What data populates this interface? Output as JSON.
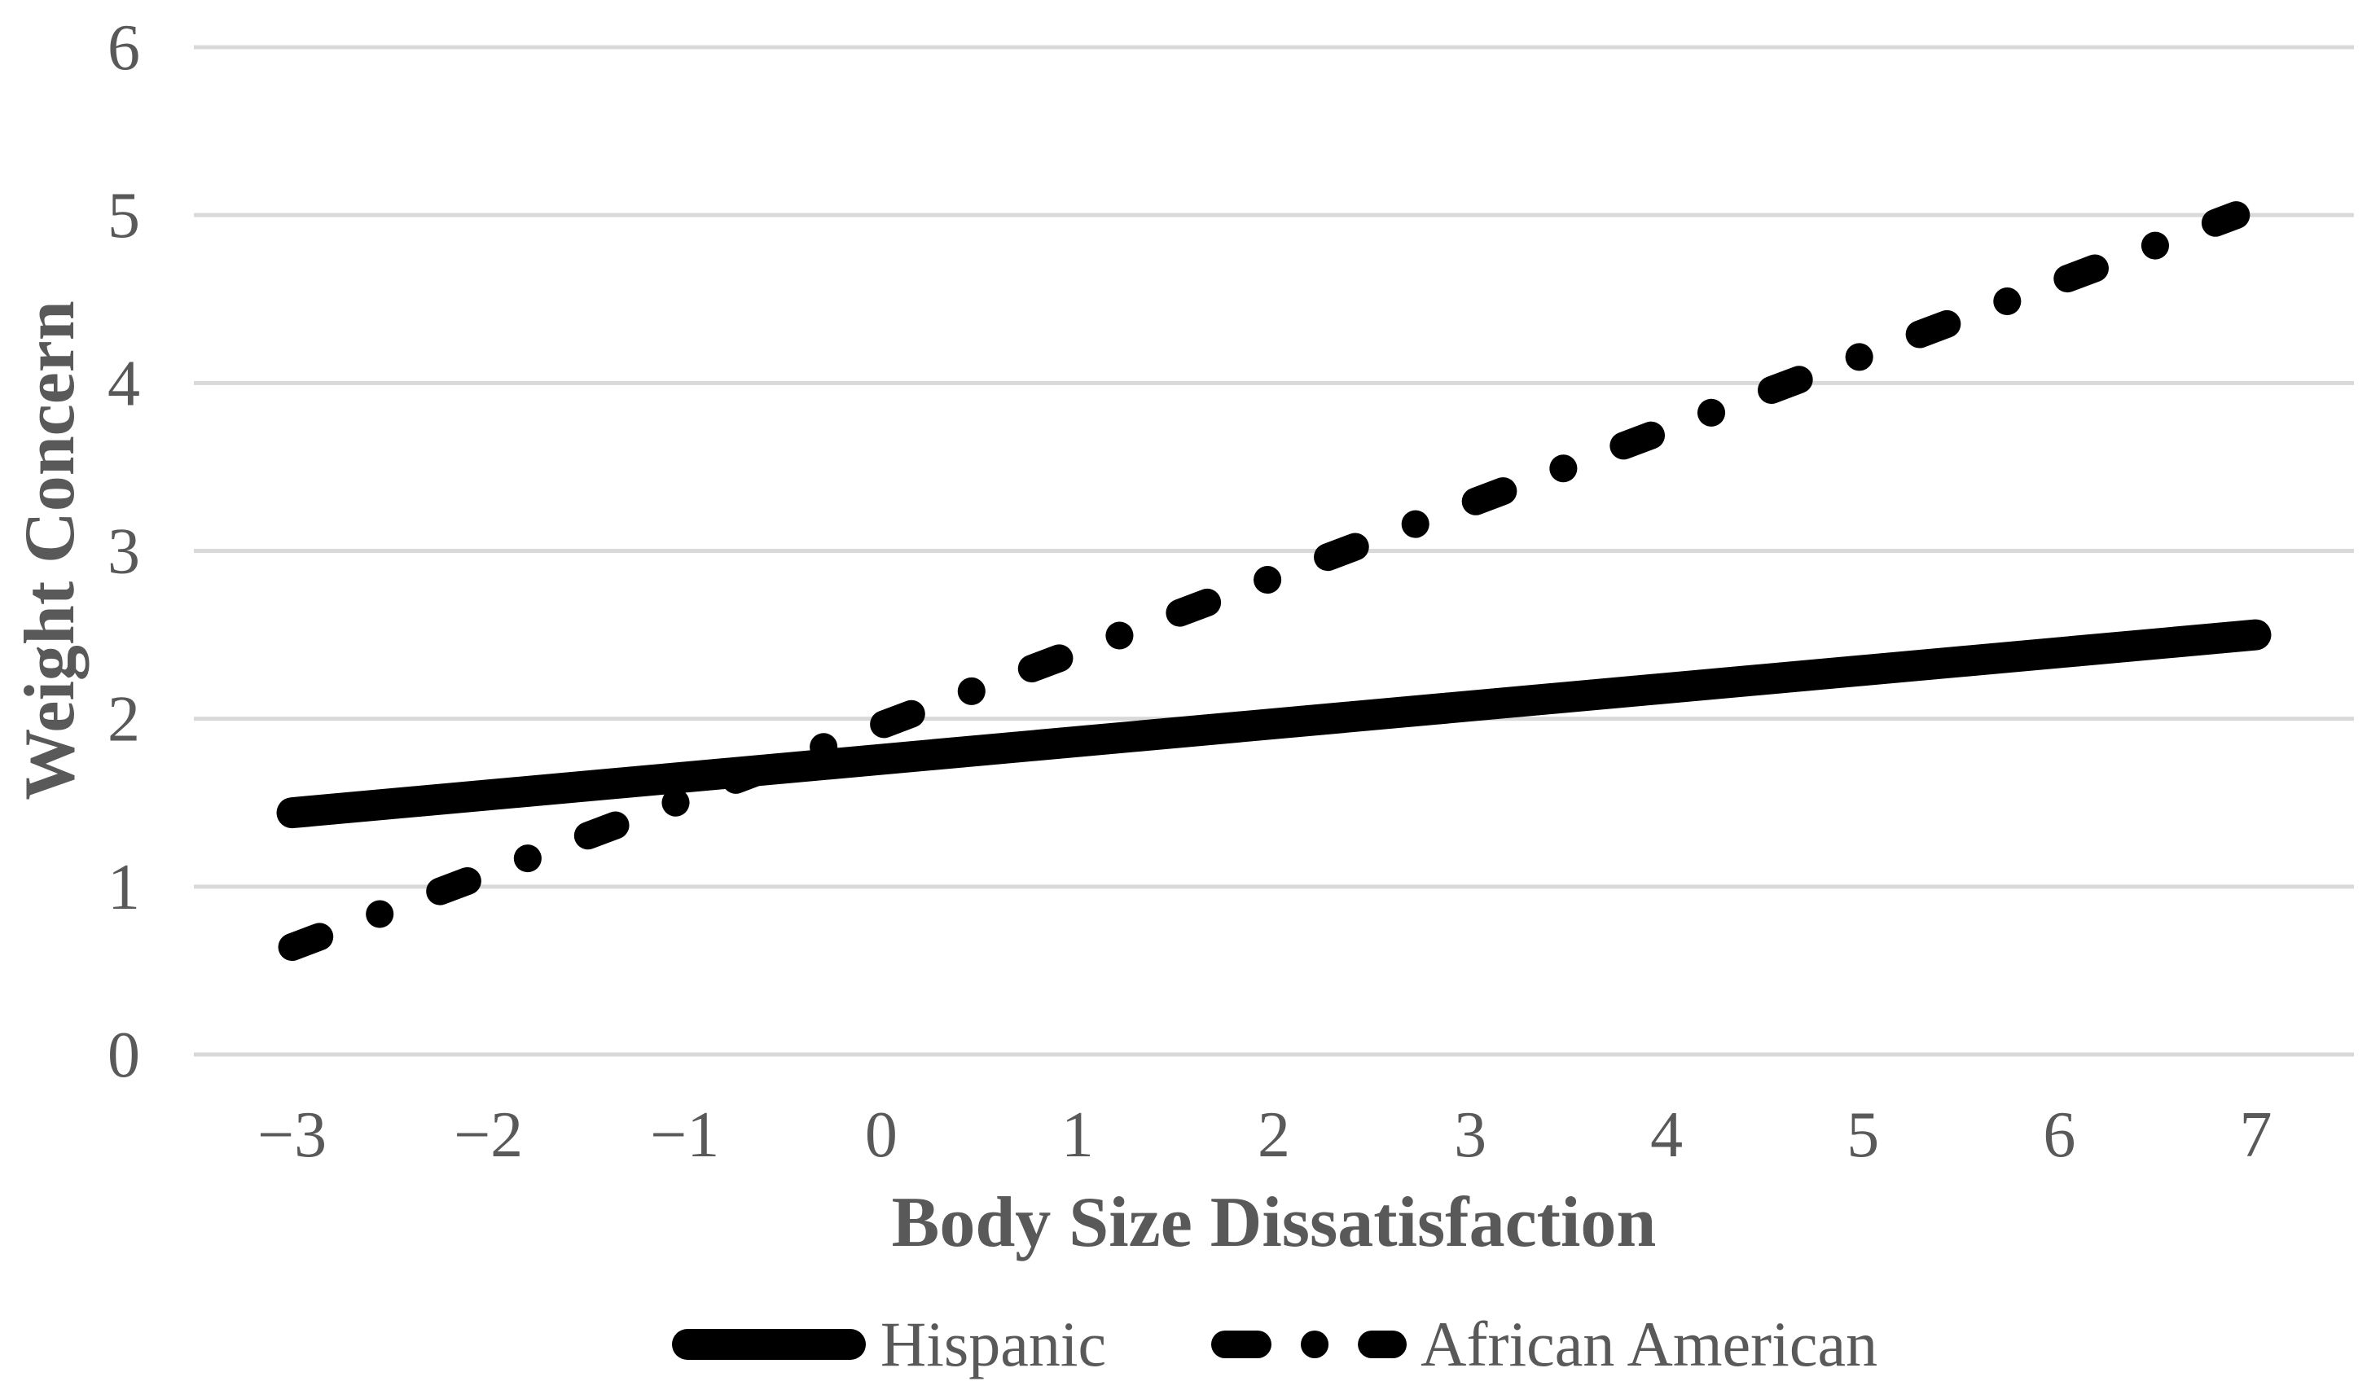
{
  "styles": {
    "background": "#FFFFFF",
    "text_color": "#595959",
    "gridline_color": "#D9D9D9",
    "series_color": "#000000"
  },
  "chart_data": {
    "type": "line",
    "title": "",
    "xlabel": "Body Size Dissatisfaction",
    "ylabel": "Weight Concern",
    "xlim": [
      -3.5,
      7.5
    ],
    "ylim": [
      0,
      6
    ],
    "grid": "horizontal-only",
    "legend_position": "bottom-center",
    "x_ticks": [
      -3,
      -2,
      -1,
      0,
      1,
      2,
      3,
      4,
      5,
      6,
      7
    ],
    "x_tick_labels": [
      "−3",
      "−2",
      "−1",
      "0",
      "1",
      "2",
      "3",
      "4",
      "5",
      "6",
      "7"
    ],
    "y_ticks": [
      0,
      1,
      2,
      3,
      4,
      5,
      6
    ],
    "y_tick_labels": [
      "0",
      "1",
      "2",
      "3",
      "4",
      "5",
      "6"
    ],
    "series": [
      {
        "name": "Hispanic",
        "line_style": "solid",
        "color": "#000000",
        "x": [
          -3,
          7
        ],
        "values": [
          1.44,
          2.5
        ]
      },
      {
        "name": "African American",
        "line_style": "long-dash-dot",
        "color": "#000000",
        "x": [
          -3,
          6.9
        ],
        "values": [
          0.64,
          5.0
        ]
      }
    ]
  }
}
